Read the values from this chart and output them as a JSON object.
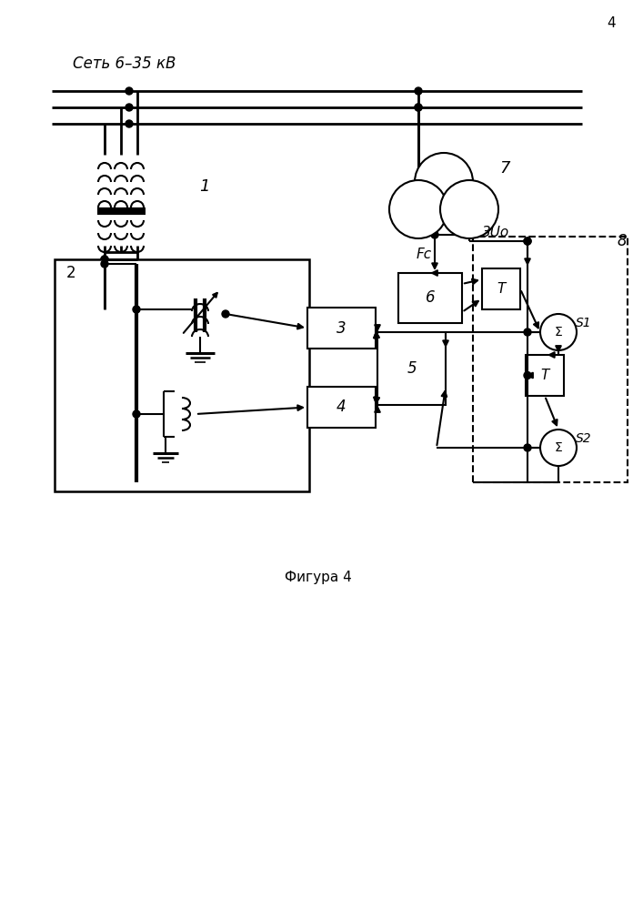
{
  "figure_caption": "Фигура 4",
  "page_number": "4",
  "network_label": "Сеть 6–35 кВ",
  "background": "#ffffff",
  "line_color": "#000000"
}
